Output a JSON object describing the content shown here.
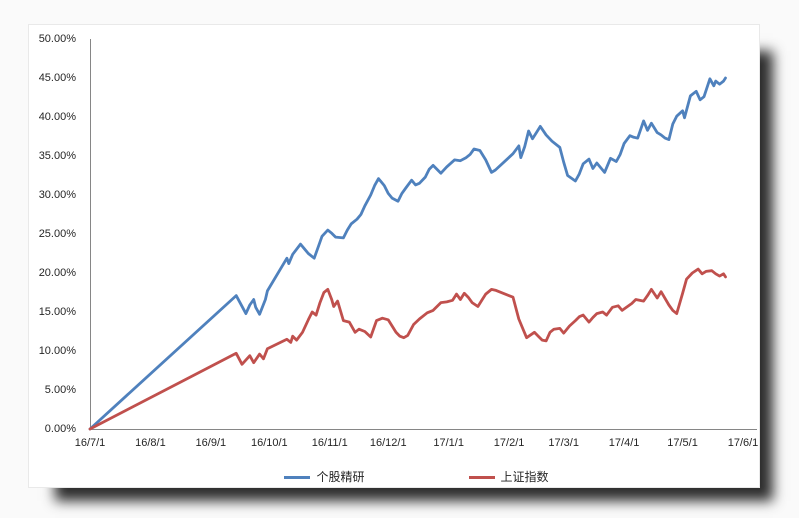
{
  "chart_data": {
    "type": "line",
    "title": "",
    "grid": false,
    "legend_position": "bottom",
    "x_axis": {
      "start": "16/7/1",
      "end": "17/6/1",
      "tick_labels": [
        "16/7/1",
        "16/8/1",
        "16/9/1",
        "16/10/1",
        "16/11/1",
        "16/12/1",
        "17/1/1",
        "17/2/1",
        "17/3/1",
        "17/4/1",
        "17/5/1",
        "17/6/1"
      ]
    },
    "y_axis": {
      "min": 0,
      "max": 50,
      "step": 5,
      "unit": "%",
      "tick_labels": [
        "0.00%",
        "5.00%",
        "10.00%",
        "15.00%",
        "20.00%",
        "25.00%",
        "30.00%",
        "35.00%",
        "40.00%",
        "45.00%",
        "50.00%"
      ]
    },
    "series": [
      {
        "name": "个股精研",
        "color": "#4F81BD",
        "points": [
          [
            "16/7/1",
            0
          ],
          [
            "16/9/14",
            17.1
          ],
          [
            "16/9/19",
            14.8
          ],
          [
            "16/9/21",
            15.9
          ],
          [
            "16/9/23",
            16.6
          ],
          [
            "16/9/24",
            15.6
          ],
          [
            "16/9/26",
            14.7
          ],
          [
            "16/9/29",
            16.6
          ],
          [
            "16/9/30",
            17.7
          ],
          [
            "16/10/10",
            21.9
          ],
          [
            "16/10/11",
            21.2
          ],
          [
            "16/10/13",
            22.4
          ],
          [
            "16/10/17",
            23.7
          ],
          [
            "16/10/19",
            23.1
          ],
          [
            "16/10/21",
            22.5
          ],
          [
            "16/10/24",
            21.9
          ],
          [
            "16/10/26",
            23.3
          ],
          [
            "16/10/28",
            24.7
          ],
          [
            "16/10/31",
            25.5
          ],
          [
            "16/11/2",
            25.1
          ],
          [
            "16/11/4",
            24.6
          ],
          [
            "16/11/8",
            24.5
          ],
          [
            "16/11/10",
            25.5
          ],
          [
            "16/11/12",
            26.3
          ],
          [
            "16/11/15",
            26.9
          ],
          [
            "16/11/17",
            27.5
          ],
          [
            "16/11/19",
            28.6
          ],
          [
            "16/11/22",
            30.0
          ],
          [
            "16/11/24",
            31.2
          ],
          [
            "16/11/26",
            32.1
          ],
          [
            "16/11/29",
            31.2
          ],
          [
            "16/12/1",
            30.2
          ],
          [
            "16/12/3",
            29.6
          ],
          [
            "16/12/6",
            29.2
          ],
          [
            "16/12/8",
            30.2
          ],
          [
            "16/12/10",
            30.9
          ],
          [
            "16/12/13",
            31.9
          ],
          [
            "16/12/15",
            31.3
          ],
          [
            "16/12/17",
            31.5
          ],
          [
            "16/12/20",
            32.3
          ],
          [
            "16/12/22",
            33.3
          ],
          [
            "16/12/24",
            33.8
          ],
          [
            "16/12/28",
            32.8
          ],
          [
            "16/12/31",
            33.6
          ],
          [
            "17/1/4",
            34.5
          ],
          [
            "17/1/7",
            34.4
          ],
          [
            "17/1/10",
            34.8
          ],
          [
            "17/1/12",
            35.2
          ],
          [
            "17/1/14",
            35.9
          ],
          [
            "17/1/17",
            35.7
          ],
          [
            "17/1/20",
            34.5
          ],
          [
            "17/1/23",
            32.9
          ],
          [
            "17/1/25",
            33.2
          ],
          [
            "17/2/3",
            35.3
          ],
          [
            "17/2/6",
            36.3
          ],
          [
            "17/2/7",
            34.8
          ],
          [
            "17/2/9",
            36.2
          ],
          [
            "17/2/11",
            38.2
          ],
          [
            "17/2/13",
            37.2
          ],
          [
            "17/2/15",
            38.0
          ],
          [
            "17/2/17",
            38.8
          ],
          [
            "17/2/20",
            37.7
          ],
          [
            "17/2/23",
            36.9
          ],
          [
            "17/2/27",
            36.1
          ],
          [
            "17/3/1",
            34.2
          ],
          [
            "17/3/3",
            32.5
          ],
          [
            "17/3/7",
            31.8
          ],
          [
            "17/3/9",
            32.7
          ],
          [
            "17/3/11",
            34.0
          ],
          [
            "17/3/14",
            34.6
          ],
          [
            "17/3/16",
            33.4
          ],
          [
            "17/3/18",
            34.1
          ],
          [
            "17/3/22",
            32.9
          ],
          [
            "17/3/25",
            34.7
          ],
          [
            "17/3/28",
            34.3
          ],
          [
            "17/3/30",
            35.2
          ],
          [
            "17/4/1",
            36.6
          ],
          [
            "17/4/4",
            37.6
          ],
          [
            "17/4/6",
            37.4
          ],
          [
            "17/4/8",
            37.3
          ],
          [
            "17/4/11",
            39.5
          ],
          [
            "17/4/13",
            38.3
          ],
          [
            "17/4/15",
            39.2
          ],
          [
            "17/4/18",
            38.0
          ],
          [
            "17/4/20",
            37.7
          ],
          [
            "17/4/22",
            37.3
          ],
          [
            "17/4/24",
            37.1
          ],
          [
            "17/4/26",
            39.1
          ],
          [
            "17/4/28",
            40.1
          ],
          [
            "17/5/1",
            40.8
          ],
          [
            "17/5/2",
            39.9
          ],
          [
            "17/5/5",
            42.7
          ],
          [
            "17/5/8",
            43.3
          ],
          [
            "17/5/10",
            42.2
          ],
          [
            "17/5/12",
            42.6
          ],
          [
            "17/5/15",
            44.9
          ],
          [
            "17/5/17",
            44.0
          ],
          [
            "17/5/18",
            44.6
          ],
          [
            "17/5/20",
            44.2
          ],
          [
            "17/5/22",
            44.6
          ],
          [
            "17/5/23",
            45.0
          ]
        ]
      },
      {
        "name": "上证指数",
        "color": "#C0504D",
        "points": [
          [
            "16/7/1",
            0
          ],
          [
            "16/9/14",
            9.7
          ],
          [
            "16/9/17",
            8.3
          ],
          [
            "16/9/21",
            9.4
          ],
          [
            "16/9/23",
            8.5
          ],
          [
            "16/9/26",
            9.6
          ],
          [
            "16/9/28",
            9.0
          ],
          [
            "16/9/30",
            10.3
          ],
          [
            "16/10/10",
            11.5
          ],
          [
            "16/10/12",
            11.1
          ],
          [
            "16/10/13",
            11.9
          ],
          [
            "16/10/15",
            11.4
          ],
          [
            "16/10/18",
            12.4
          ],
          [
            "16/10/21",
            14.0
          ],
          [
            "16/10/23",
            15.0
          ],
          [
            "16/10/25",
            14.6
          ],
          [
            "16/10/27",
            16.2
          ],
          [
            "16/10/29",
            17.5
          ],
          [
            "16/10/31",
            17.9
          ],
          [
            "16/11/2",
            16.6
          ],
          [
            "16/11/3",
            15.7
          ],
          [
            "16/11/5",
            16.4
          ],
          [
            "16/11/8",
            13.9
          ],
          [
            "16/11/11",
            13.7
          ],
          [
            "16/11/14",
            12.4
          ],
          [
            "16/11/16",
            12.8
          ],
          [
            "16/11/19",
            12.5
          ],
          [
            "16/11/22",
            11.8
          ],
          [
            "16/11/25",
            13.9
          ],
          [
            "16/11/28",
            14.2
          ],
          [
            "16/12/1",
            14.0
          ],
          [
            "16/12/5",
            12.4
          ],
          [
            "16/12/7",
            11.9
          ],
          [
            "16/12/9",
            11.7
          ],
          [
            "16/12/11",
            12.0
          ],
          [
            "16/12/14",
            13.4
          ],
          [
            "16/12/17",
            14.1
          ],
          [
            "16/12/21",
            14.9
          ],
          [
            "16/12/24",
            15.2
          ],
          [
            "16/12/28",
            16.2
          ],
          [
            "16/12/31",
            16.3
          ],
          [
            "17/1/3",
            16.5
          ],
          [
            "17/1/5",
            17.3
          ],
          [
            "17/1/7",
            16.6
          ],
          [
            "17/1/9",
            17.4
          ],
          [
            "17/1/11",
            16.9
          ],
          [
            "17/1/13",
            16.2
          ],
          [
            "17/1/16",
            15.7
          ],
          [
            "17/1/18",
            16.5
          ],
          [
            "17/1/20",
            17.3
          ],
          [
            "17/1/23",
            17.9
          ],
          [
            "17/1/25",
            17.8
          ],
          [
            "17/2/3",
            16.9
          ],
          [
            "17/2/6",
            14.1
          ],
          [
            "17/2/8",
            12.9
          ],
          [
            "17/2/10",
            11.7
          ],
          [
            "17/2/14",
            12.4
          ],
          [
            "17/2/16",
            11.9
          ],
          [
            "17/2/18",
            11.4
          ],
          [
            "17/2/20",
            11.3
          ],
          [
            "17/2/22",
            12.4
          ],
          [
            "17/2/24",
            12.8
          ],
          [
            "17/2/27",
            12.9
          ],
          [
            "17/3/1",
            12.3
          ],
          [
            "17/3/4",
            13.2
          ],
          [
            "17/3/7",
            13.9
          ],
          [
            "17/3/9",
            14.4
          ],
          [
            "17/3/11",
            14.6
          ],
          [
            "17/3/14",
            13.7
          ],
          [
            "17/3/16",
            14.3
          ],
          [
            "17/3/18",
            14.8
          ],
          [
            "17/3/21",
            15.0
          ],
          [
            "17/3/23",
            14.6
          ],
          [
            "17/3/26",
            15.6
          ],
          [
            "17/3/29",
            15.8
          ],
          [
            "17/3/31",
            15.2
          ],
          [
            "17/4/5",
            16.1
          ],
          [
            "17/4/7",
            16.6
          ],
          [
            "17/4/11",
            16.4
          ],
          [
            "17/4/13",
            17.1
          ],
          [
            "17/4/15",
            17.9
          ],
          [
            "17/4/18",
            16.8
          ],
          [
            "17/4/20",
            17.6
          ],
          [
            "17/4/24",
            15.9
          ],
          [
            "17/4/26",
            15.2
          ],
          [
            "17/4/28",
            14.8
          ],
          [
            "17/5/1",
            17.4
          ],
          [
            "17/5/3",
            19.2
          ],
          [
            "17/5/6",
            20.0
          ],
          [
            "17/5/9",
            20.5
          ],
          [
            "17/5/11",
            19.9
          ],
          [
            "17/5/13",
            20.2
          ],
          [
            "17/5/16",
            20.3
          ],
          [
            "17/5/18",
            19.9
          ],
          [
            "17/5/20",
            19.6
          ],
          [
            "17/5/22",
            19.9
          ],
          [
            "17/5/23",
            19.5
          ]
        ]
      }
    ]
  },
  "colors": {
    "axis": "#868686",
    "tick_text": "#262626",
    "chart_background": "#ffffff",
    "page_background": "#fafafa"
  }
}
